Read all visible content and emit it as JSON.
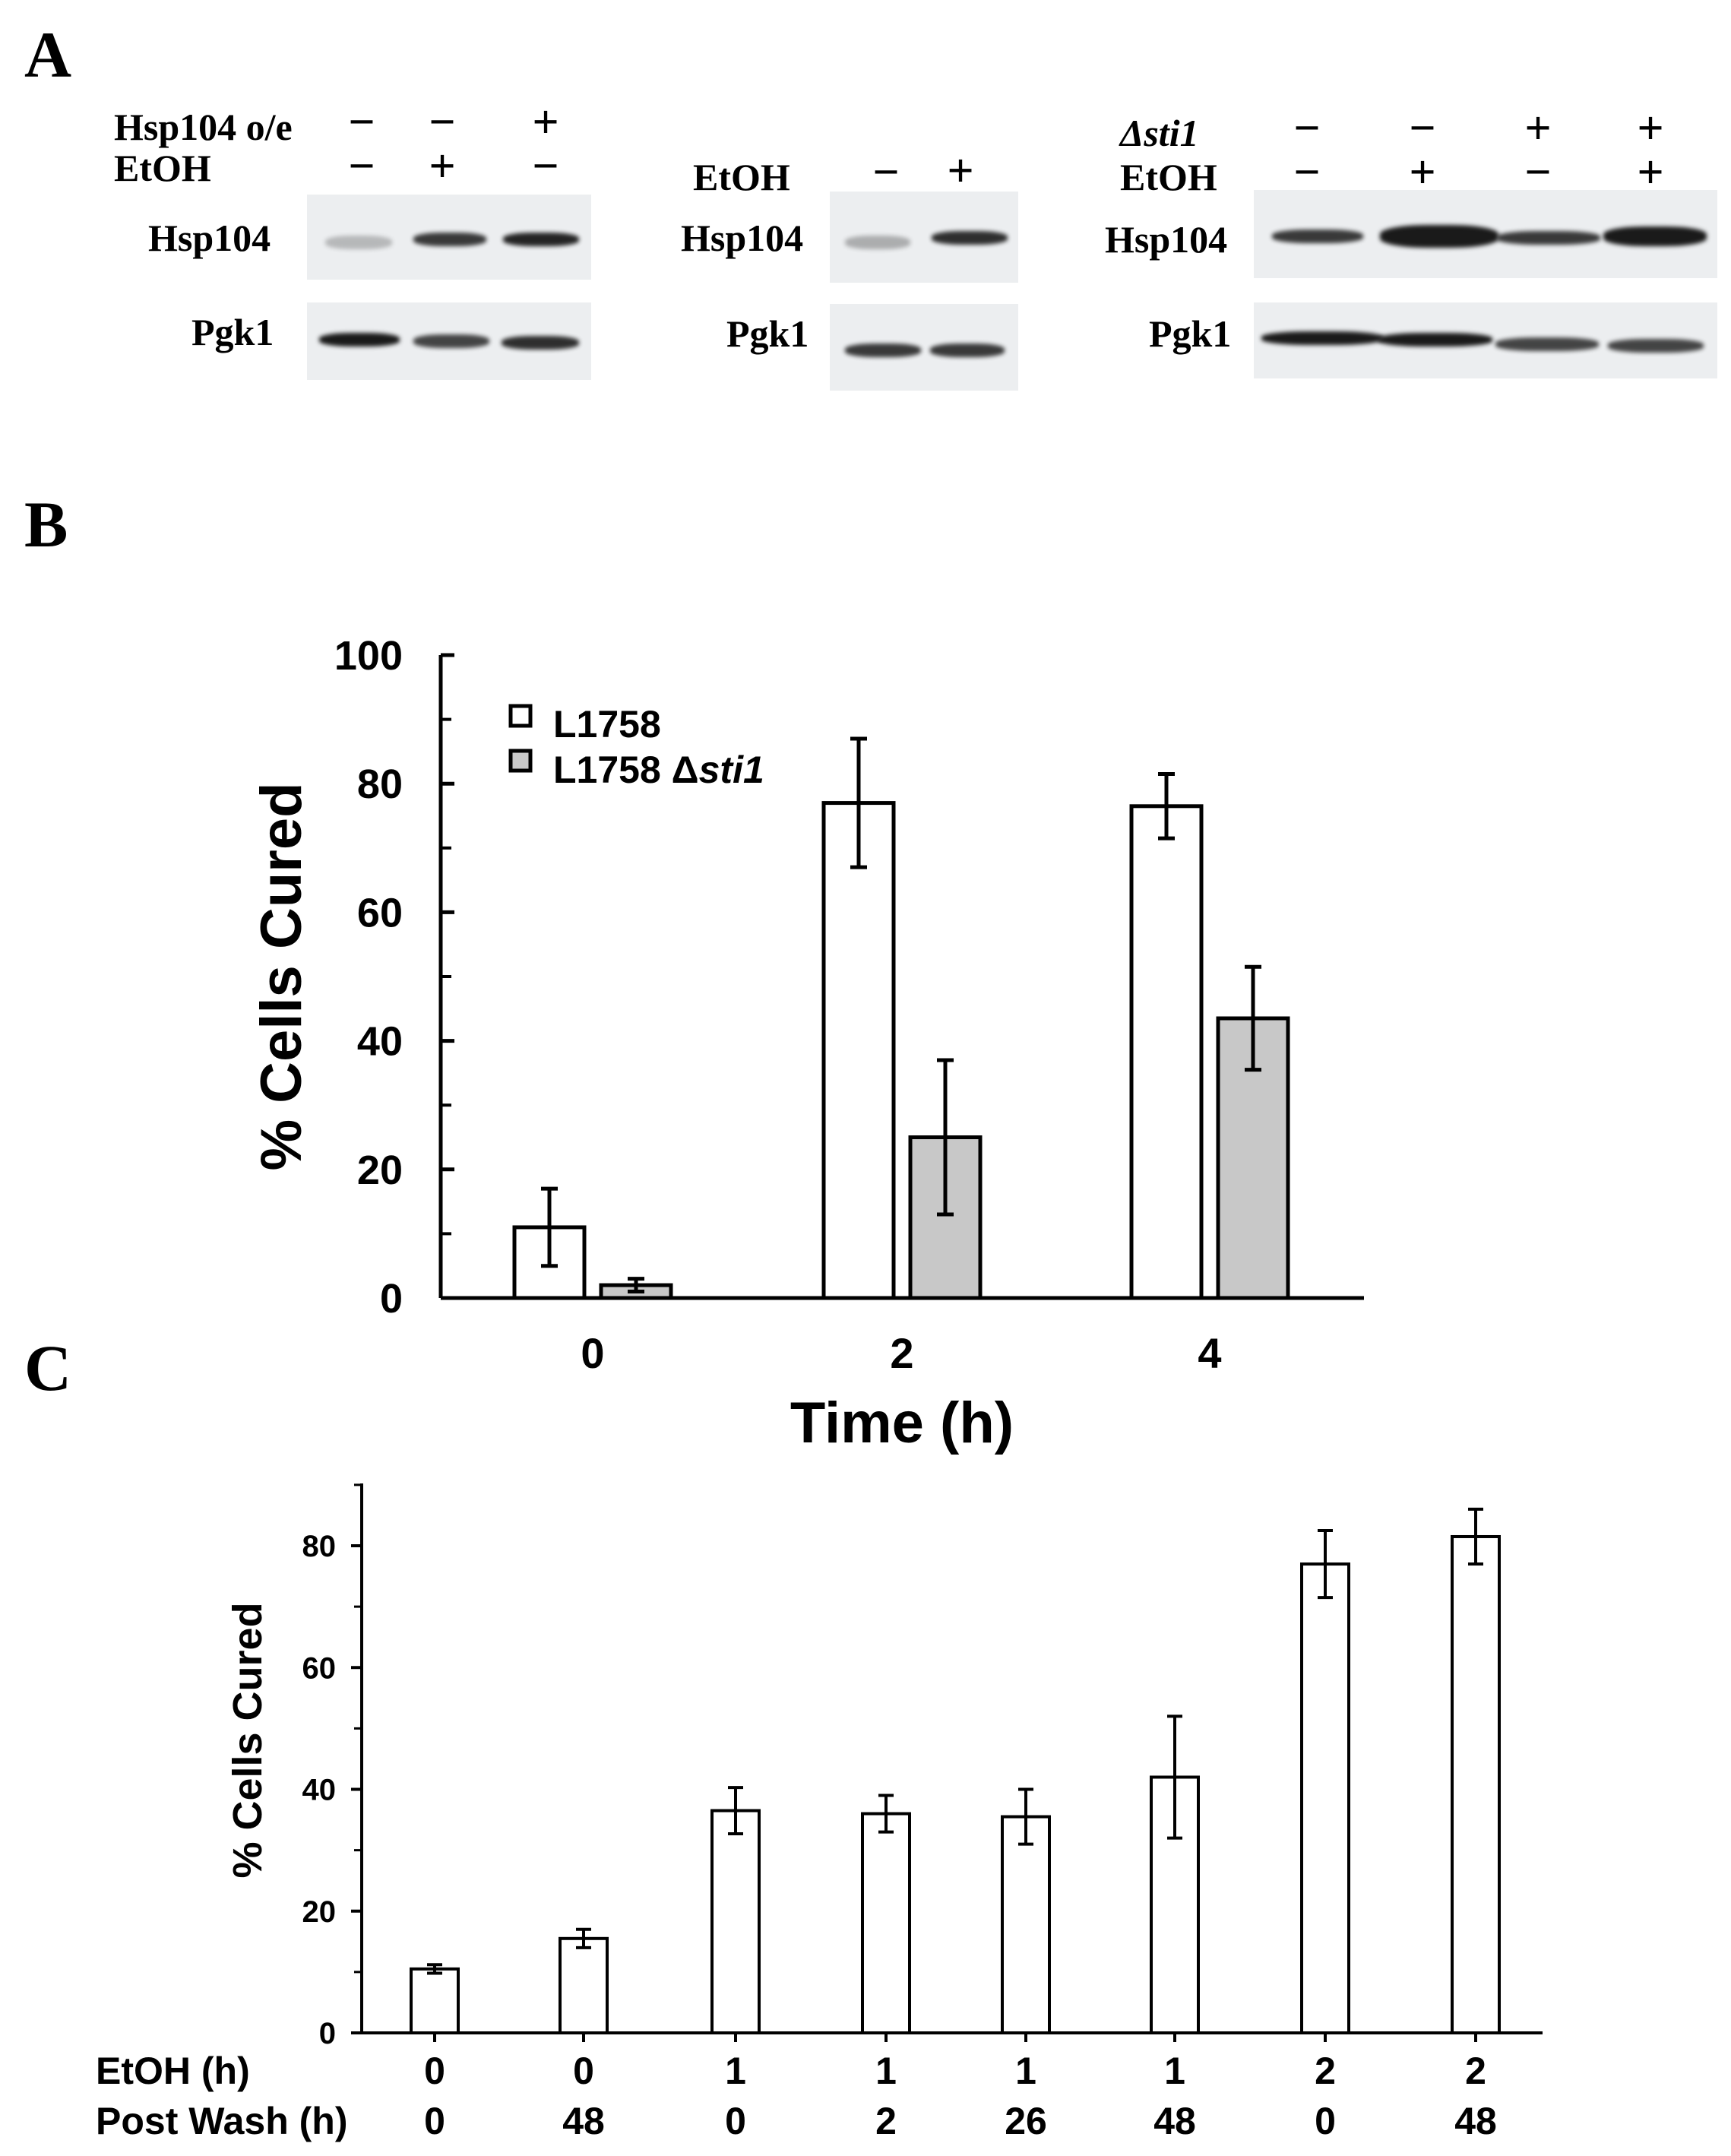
{
  "panelA": {
    "letter": "A",
    "blot1": {
      "rows": [
        {
          "label": "Hsp104 o/e",
          "signs": [
            "−",
            "−",
            "+"
          ]
        },
        {
          "label": "EtOH",
          "signs": [
            "−",
            "+",
            "−"
          ]
        }
      ],
      "proteins": [
        "Hsp104",
        "Pgk1"
      ]
    },
    "blot2": {
      "rows": [
        {
          "label": "EtOH",
          "signs": [
            "−",
            "+"
          ]
        }
      ],
      "proteins": [
        "Hsp104",
        "Pgk1"
      ]
    },
    "blot3": {
      "rows": [
        {
          "label": "Δsti1",
          "signs": [
            "−",
            "−",
            "+",
            "+"
          ]
        },
        {
          "label": "EtOH",
          "signs": [
            "−",
            "+",
            "−",
            "+"
          ]
        }
      ],
      "proteins": [
        "Hsp104",
        "Pgk1"
      ]
    }
  },
  "panelB": {
    "letter": "B"
  },
  "panelC": {
    "letter": "C"
  },
  "chart_data": [
    {
      "type": "bar",
      "panel": "B",
      "categories": [
        "0",
        "2",
        "4"
      ],
      "series": [
        {
          "name": "L1758",
          "color": "#ffffff",
          "values": [
            11,
            77,
            76.5
          ],
          "errors": [
            6,
            10,
            5
          ]
        },
        {
          "name": "L1758 Δsti1",
          "color": "#c8c8c8",
          "values": [
            2,
            25,
            43.5
          ],
          "errors": [
            1,
            12,
            8
          ]
        }
      ],
      "xlabel": "Time (h)",
      "ylabel": "% Cells Cured",
      "ylim": [
        0,
        100
      ],
      "yticks": [
        0,
        20,
        40,
        60,
        80,
        100
      ],
      "legend": "top-left"
    },
    {
      "type": "bar",
      "panel": "C",
      "row_labels": [
        "EtOH (h)",
        "Post Wash (h)"
      ],
      "categories": [
        {
          "etoh": "0",
          "postwash": "0"
        },
        {
          "etoh": "0",
          "postwash": "48"
        },
        {
          "etoh": "1",
          "postwash": "0"
        },
        {
          "etoh": "1",
          "postwash": "2"
        },
        {
          "etoh": "1",
          "postwash": "26"
        },
        {
          "etoh": "1",
          "postwash": "48"
        },
        {
          "etoh": "2",
          "postwash": "0"
        },
        {
          "etoh": "2",
          "postwash": "48"
        }
      ],
      "values": [
        10.5,
        15.5,
        36.5,
        36,
        35.5,
        42,
        77,
        81.5
      ],
      "errors": [
        0.7,
        1.5,
        3.8,
        3,
        4.5,
        10,
        5.5,
        4.5
      ],
      "ylabel": "% Cells Cured",
      "ylim": [
        0,
        90
      ],
      "yticks": [
        0,
        20,
        40,
        60,
        80
      ]
    }
  ]
}
